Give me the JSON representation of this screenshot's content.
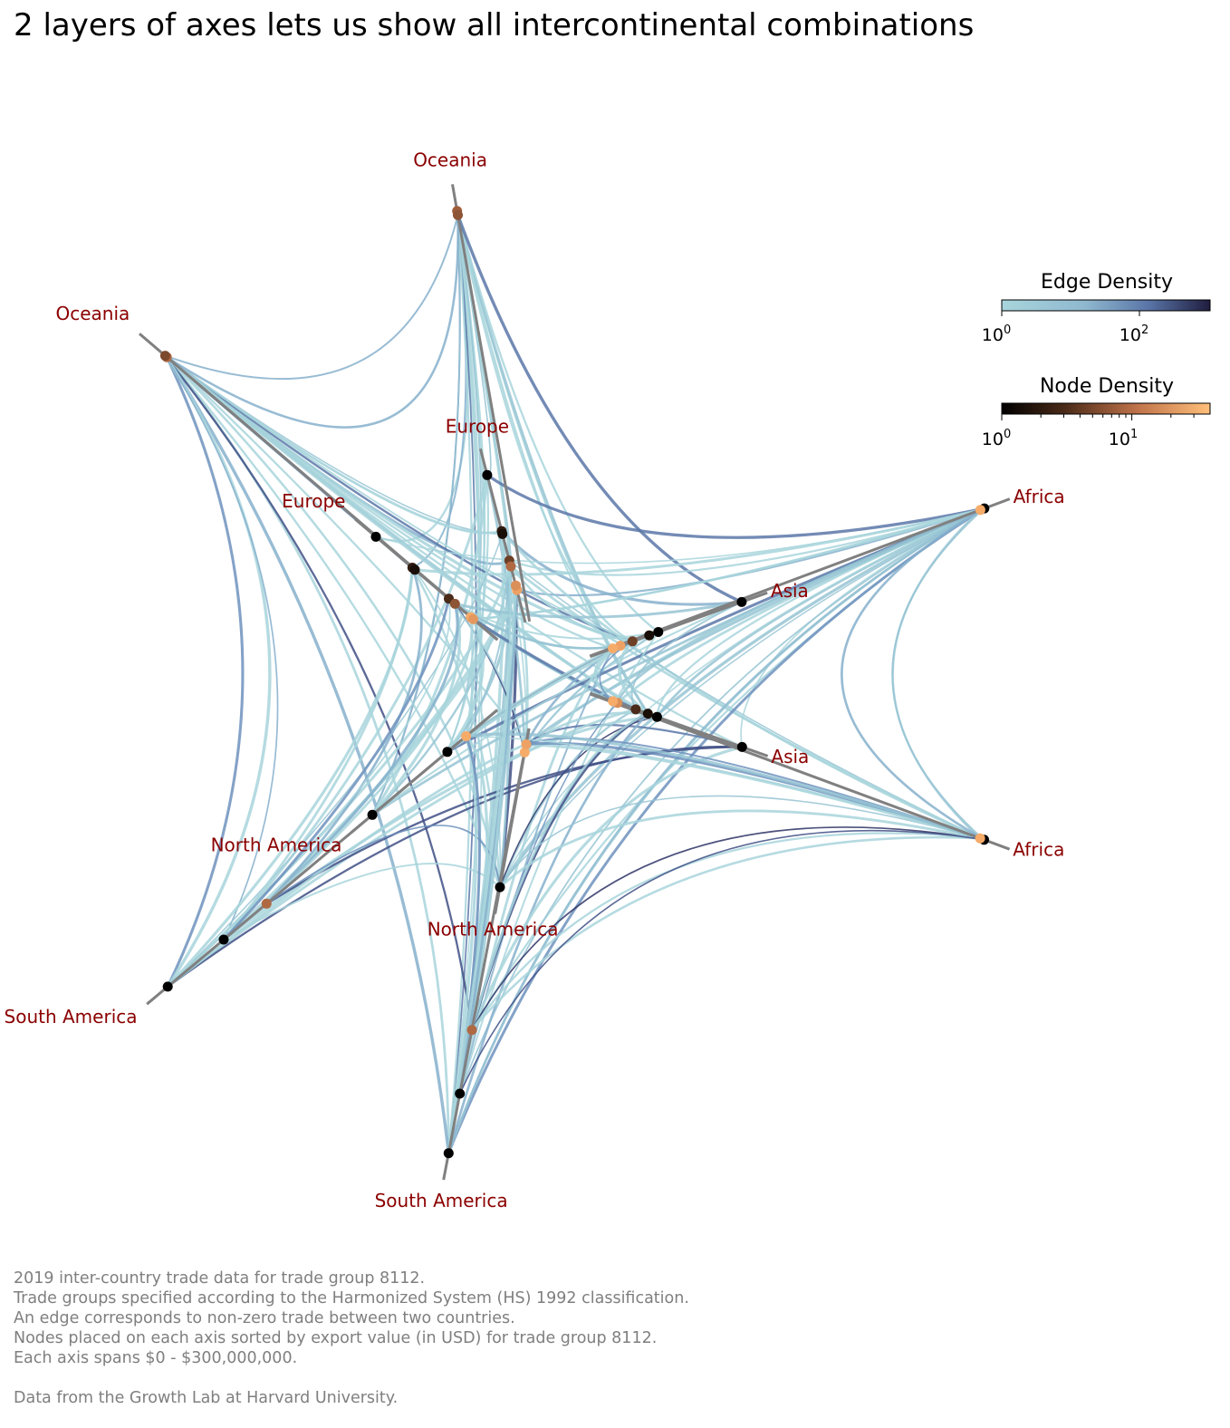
{
  "title": "2 layers of axes lets us show all intercontinental combinations",
  "chart_data": {
    "type": "hive_plot",
    "axis_range_usd": [
      0,
      300000000
    ],
    "axes": [
      {
        "label": "Oceania",
        "layer": "outer"
      },
      {
        "label": "Oceania",
        "layer": "inner"
      },
      {
        "label": "Europe",
        "layer": "outer"
      },
      {
        "label": "Europe",
        "layer": "inner"
      },
      {
        "label": "Africa",
        "layer": "outer"
      },
      {
        "label": "Asia",
        "layer": "outer"
      },
      {
        "label": "Asia",
        "layer": "inner"
      },
      {
        "label": "Africa",
        "layer": "inner"
      },
      {
        "label": "North America",
        "layer": "outer"
      },
      {
        "label": "North America",
        "layer": "inner"
      },
      {
        "label": "South America",
        "layer": "outer"
      },
      {
        "label": "South America",
        "layer": "inner"
      }
    ],
    "colorbars": [
      {
        "title": "Edge Density",
        "colors": [
          "#a8d5dc",
          "#6a8cb8",
          "#1f1d3f"
        ],
        "scale": "log",
        "ticks": [
          {
            "base": "10",
            "exp": "0"
          },
          {
            "base": "10",
            "exp": "2"
          }
        ]
      },
      {
        "title": "Node Density",
        "colors": [
          "#000000",
          "#7d4a2c",
          "#f0a060",
          "#ffc07a"
        ],
        "scale": "log",
        "ticks": [
          {
            "base": "10",
            "exp": "0"
          },
          {
            "base": "10",
            "exp": "1"
          }
        ]
      }
    ],
    "colors": {
      "axis_label": "#8b0000",
      "axis_line": "#808080",
      "footer_text": "#7f7f7f"
    }
  },
  "footer": [
    "2019 inter-country trade data for trade group 8112.",
    "Trade groups specified according to the Harmonized System (HS) 1992 classification.",
    "An edge corresponds to non-zero trade between two countries.",
    "Nodes placed on each axis sorted by export value (in USD) for trade group 8112.",
    "Each axis spans $0 - $300,000,000.",
    "",
    "Data from the Growth Lab at Harvard University."
  ]
}
